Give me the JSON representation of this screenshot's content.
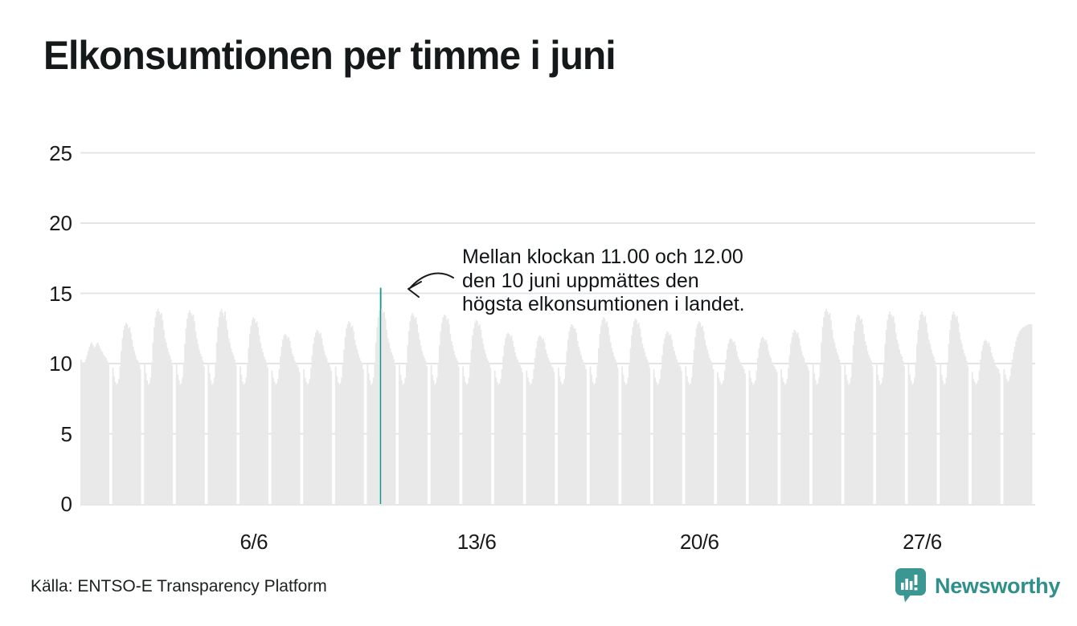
{
  "title": "Elkonsumtionen per timme i juni",
  "source": "Källa: ENTSO-E Transparency Platform",
  "logo": {
    "brand": "Newsworthy",
    "icon": "newsworthy-bar-chart-bubble-icon",
    "icon_color": "#3a9791",
    "wordmark_color": "#2e8f8b"
  },
  "annotation": {
    "lines": [
      "Mellan klockan 11.00 och 12.00",
      "den 10 juni uppmättes den",
      "högsta elkonsumtionen i landet."
    ]
  },
  "chart_data": {
    "type": "bar",
    "title": "Elkonsumtionen per timme i juni",
    "xlabel": "",
    "ylabel": "",
    "ylim": [
      0,
      25
    ],
    "y_ticks": [
      0,
      5,
      10,
      15,
      20,
      25
    ],
    "x_tick_labels": [
      "6/6",
      "13/6",
      "20/6",
      "27/6"
    ],
    "x_tick_days": [
      6,
      13,
      20,
      27
    ],
    "grid": "horizontal",
    "legend": "none",
    "bar_color": "#e9e9e9",
    "gridline_color": "#e4e4e8",
    "highlight_color": "#12998c",
    "highlight": {
      "day": 10,
      "hour": 11,
      "value": 15.4
    },
    "days": [
      {
        "day": 1,
        "values": [
          10.3,
          10.1,
          10.0,
          10.1,
          10.3,
          10.6,
          10.9,
          11.2,
          11.4,
          11.5,
          11.3,
          11.1,
          11.2,
          11.4,
          11.5,
          11.3,
          11.1,
          10.9,
          10.8,
          10.6,
          10.5,
          10.4,
          10.2,
          10.0
        ]
      },
      {
        "day": 2,
        "values": [
          9.7,
          9.1,
          8.7,
          8.5,
          8.6,
          8.9,
          9.8,
          10.9,
          11.8,
          12.4,
          12.7,
          12.9,
          12.8,
          12.5,
          12.6,
          12.2,
          11.7,
          11.2,
          10.9,
          10.6,
          10.3,
          10.2,
          10.0,
          9.6
        ]
      },
      {
        "day": 3,
        "values": [
          10.0,
          9.3,
          8.8,
          8.5,
          8.6,
          9.0,
          10.1,
          11.5,
          12.6,
          13.3,
          13.7,
          13.9,
          13.7,
          13.5,
          13.6,
          13.1,
          12.4,
          11.8,
          11.5,
          11.1,
          10.8,
          10.6,
          10.3,
          9.9
        ]
      },
      {
        "day": 4,
        "values": [
          10.0,
          9.2,
          8.8,
          8.5,
          8.6,
          9.0,
          10.1,
          11.4,
          12.5,
          13.2,
          13.6,
          13.8,
          13.6,
          13.4,
          13.5,
          13.0,
          12.3,
          11.8,
          11.4,
          11.0,
          10.7,
          10.5,
          10.2,
          9.8
        ]
      },
      {
        "day": 5,
        "values": [
          10.0,
          9.3,
          8.8,
          8.5,
          8.6,
          9.0,
          10.1,
          11.5,
          12.6,
          13.3,
          13.7,
          13.9,
          13.6,
          13.4,
          13.7,
          13.1,
          12.4,
          11.8,
          11.5,
          11.1,
          10.8,
          10.6,
          10.3,
          9.9
        ]
      },
      {
        "day": 6,
        "values": [
          9.8,
          9.2,
          8.7,
          8.5,
          8.6,
          9.0,
          9.9,
          11.1,
          12.1,
          12.7,
          13.1,
          13.3,
          13.2,
          12.9,
          13.0,
          12.6,
          12.0,
          11.5,
          11.1,
          10.8,
          10.5,
          10.3,
          10.1,
          9.7
        ]
      },
      {
        "day": 7,
        "values": [
          9.5,
          9.0,
          8.7,
          8.5,
          8.6,
          8.9,
          9.6,
          10.5,
          11.2,
          11.7,
          12.0,
          12.1,
          12.0,
          11.8,
          11.9,
          11.6,
          11.1,
          10.7,
          10.5,
          10.2,
          10.0,
          9.9,
          9.7,
          9.4
        ]
      },
      {
        "day": 8,
        "values": [
          9.6,
          9.0,
          8.7,
          8.5,
          8.6,
          8.9,
          9.7,
          10.6,
          11.4,
          11.9,
          12.2,
          12.4,
          12.3,
          12.1,
          12.2,
          11.8,
          11.3,
          10.9,
          10.6,
          10.4,
          10.1,
          10.0,
          9.8,
          9.5
        ]
      },
      {
        "day": 9,
        "values": [
          9.8,
          9.1,
          8.7,
          8.5,
          8.6,
          9.0,
          9.9,
          11.0,
          11.9,
          12.5,
          12.8,
          13.0,
          12.9,
          12.6,
          12.7,
          12.3,
          11.7,
          11.3,
          11.0,
          10.7,
          10.4,
          10.2,
          10.0,
          9.6
        ]
      },
      {
        "day": 10,
        "values": [
          10.0,
          9.3,
          8.8,
          8.5,
          8.6,
          9.0,
          10.1,
          11.5,
          12.6,
          13.3,
          13.8,
          15.4,
          13.9,
          13.6,
          13.7,
          13.2,
          12.4,
          11.8,
          11.5,
          11.1,
          10.8,
          10.6,
          10.3,
          9.9
        ]
      },
      {
        "day": 11,
        "values": [
          9.9,
          9.2,
          8.8,
          8.5,
          8.6,
          9.0,
          10.0,
          11.3,
          12.3,
          13.0,
          13.4,
          13.6,
          13.4,
          13.2,
          13.3,
          12.8,
          12.2,
          11.7,
          11.3,
          10.9,
          10.6,
          10.4,
          10.2,
          9.8
        ]
      },
      {
        "day": 12,
        "values": [
          9.9,
          9.2,
          8.8,
          8.5,
          8.6,
          9.0,
          10.0,
          11.3,
          12.3,
          12.9,
          13.3,
          13.5,
          13.4,
          13.1,
          13.2,
          12.8,
          12.1,
          11.6,
          11.3,
          10.9,
          10.6,
          10.4,
          10.2,
          9.8
        ]
      },
      {
        "day": 13,
        "values": [
          9.8,
          9.1,
          8.7,
          8.5,
          8.6,
          9.0,
          9.9,
          11.0,
          12.0,
          12.5,
          12.9,
          13.1,
          13.0,
          12.7,
          12.8,
          12.4,
          11.8,
          11.4,
          11.0,
          10.7,
          10.4,
          10.2,
          10.0,
          9.7
        ]
      },
      {
        "day": 14,
        "values": [
          9.5,
          9.0,
          8.7,
          8.5,
          8.6,
          8.9,
          9.6,
          10.5,
          11.3,
          11.8,
          12.1,
          12.2,
          12.1,
          11.9,
          12.0,
          11.6,
          11.2,
          10.8,
          10.5,
          10.3,
          10.1,
          9.9,
          9.7,
          9.4
        ]
      },
      {
        "day": 15,
        "values": [
          9.5,
          9.0,
          8.7,
          8.5,
          8.6,
          8.9,
          9.6,
          10.4,
          11.1,
          11.6,
          11.9,
          12.0,
          11.9,
          11.7,
          11.8,
          11.5,
          11.0,
          10.7,
          10.4,
          10.2,
          10.0,
          9.8,
          9.7,
          9.4
        ]
      },
      {
        "day": 16,
        "values": [
          9.7,
          9.1,
          8.7,
          8.5,
          8.6,
          8.9,
          9.8,
          10.9,
          11.7,
          12.3,
          12.6,
          12.8,
          12.7,
          12.5,
          12.5,
          12.2,
          11.6,
          11.2,
          10.9,
          10.6,
          10.3,
          10.1,
          9.9,
          9.6
        ]
      },
      {
        "day": 17,
        "values": [
          9.8,
          9.2,
          8.7,
          8.5,
          8.6,
          9.0,
          9.9,
          11.1,
          12.1,
          12.7,
          13.1,
          13.3,
          13.2,
          12.9,
          13.0,
          12.6,
          12.0,
          11.5,
          11.1,
          10.8,
          10.5,
          10.3,
          10.1,
          9.7
        ]
      },
      {
        "day": 18,
        "values": [
          9.8,
          9.2,
          8.7,
          8.5,
          8.6,
          9.0,
          9.9,
          11.1,
          12.0,
          12.6,
          13.0,
          13.2,
          13.1,
          12.8,
          12.9,
          12.5,
          11.9,
          11.4,
          11.1,
          10.8,
          10.5,
          10.3,
          10.1,
          9.7
        ]
      },
      {
        "day": 19,
        "values": [
          9.6,
          9.0,
          8.7,
          8.5,
          8.6,
          8.9,
          9.6,
          10.6,
          11.4,
          11.8,
          12.1,
          12.3,
          12.2,
          12.0,
          12.1,
          11.7,
          11.2,
          10.9,
          10.6,
          10.3,
          10.1,
          9.9,
          9.8,
          9.5
        ]
      },
      {
        "day": 20,
        "values": [
          9.8,
          9.1,
          8.7,
          8.5,
          8.6,
          9.0,
          9.9,
          11.0,
          11.9,
          12.5,
          12.8,
          13.0,
          12.9,
          12.6,
          12.7,
          12.3,
          11.7,
          11.3,
          11.0,
          10.7,
          10.4,
          10.2,
          10.0,
          9.6
        ]
      },
      {
        "day": 21,
        "values": [
          9.4,
          9.0,
          8.7,
          8.5,
          8.6,
          8.8,
          9.5,
          10.3,
          11.0,
          11.4,
          11.7,
          11.8,
          11.7,
          11.5,
          11.6,
          11.3,
          10.9,
          10.5,
          10.3,
          10.1,
          9.9,
          9.8,
          9.6,
          9.3
        ]
      },
      {
        "day": 22,
        "values": [
          9.5,
          9.0,
          8.7,
          8.5,
          8.6,
          8.8,
          9.5,
          10.4,
          11.1,
          11.5,
          11.8,
          11.9,
          11.8,
          11.6,
          11.7,
          11.4,
          10.9,
          10.6,
          10.4,
          10.1,
          9.9,
          9.8,
          9.6,
          9.4
        ]
      },
      {
        "day": 23,
        "values": [
          9.6,
          9.0,
          8.7,
          8.5,
          8.6,
          8.9,
          9.7,
          10.6,
          11.4,
          11.9,
          12.2,
          12.4,
          12.3,
          12.1,
          12.2,
          11.8,
          11.3,
          10.9,
          10.6,
          10.4,
          10.1,
          10.0,
          9.8,
          9.5
        ]
      },
      {
        "day": 24,
        "values": [
          10.0,
          9.3,
          8.8,
          8.5,
          8.6,
          9.0,
          10.1,
          11.5,
          12.6,
          13.3,
          13.7,
          13.9,
          13.7,
          13.5,
          13.6,
          13.1,
          12.4,
          11.8,
          11.5,
          11.1,
          10.8,
          10.6,
          10.3,
          9.9
        ]
      },
      {
        "day": 25,
        "values": [
          9.9,
          9.2,
          8.8,
          8.5,
          8.6,
          9.0,
          10.0,
          11.3,
          12.3,
          12.9,
          13.3,
          13.5,
          13.4,
          13.1,
          13.2,
          12.8,
          12.1,
          11.6,
          11.3,
          10.9,
          10.6,
          10.4,
          10.2,
          9.8
        ]
      },
      {
        "day": 26,
        "values": [
          10.0,
          9.2,
          8.8,
          8.5,
          8.6,
          9.0,
          10.1,
          11.4,
          12.4,
          13.1,
          13.5,
          13.7,
          13.5,
          13.3,
          13.4,
          12.9,
          12.2,
          11.7,
          11.4,
          11.0,
          10.7,
          10.5,
          10.2,
          9.8
        ]
      },
      {
        "day": 27,
        "values": [
          10.0,
          9.2,
          8.8,
          8.5,
          8.6,
          9.0,
          10.1,
          11.4,
          12.4,
          13.1,
          13.5,
          13.7,
          13.5,
          13.3,
          13.4,
          12.9,
          12.2,
          11.7,
          11.4,
          11.0,
          10.7,
          10.5,
          10.2,
          9.8
        ]
      },
      {
        "day": 28,
        "values": [
          10.0,
          9.2,
          8.8,
          8.5,
          8.6,
          9.0,
          10.1,
          11.4,
          12.4,
          13.1,
          13.5,
          13.7,
          13.5,
          13.3,
          13.4,
          12.9,
          12.2,
          11.7,
          11.4,
          11.0,
          10.7,
          10.5,
          10.2,
          9.8
        ]
      },
      {
        "day": 29,
        "values": [
          9.4,
          8.9,
          8.7,
          8.5,
          8.6,
          8.8,
          9.5,
          10.3,
          10.9,
          11.3,
          11.6,
          11.7,
          11.6,
          11.4,
          11.5,
          11.2,
          10.8,
          10.5,
          10.3,
          10.0,
          9.8,
          9.7,
          9.6,
          9.3
        ]
      },
      {
        "day": 30,
        "values": [
          9.6,
          9.2,
          8.9,
          8.7,
          8.8,
          9.1,
          9.7,
          10.3,
          10.8,
          11.2,
          11.6,
          11.9,
          12.1,
          12.3,
          12.4,
          12.5,
          12.6,
          12.6,
          12.7,
          12.7,
          12.8,
          12.8,
          12.8,
          12.8
        ]
      }
    ]
  }
}
